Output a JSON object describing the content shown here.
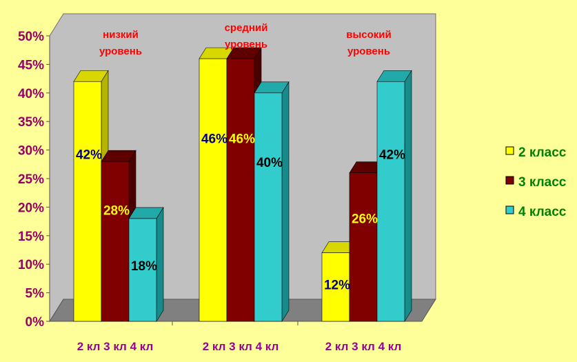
{
  "chart_data": {
    "type": "bar",
    "title": "",
    "xlabel": "",
    "ylabel": "",
    "ylim": [
      0,
      50
    ],
    "y_ticks": [
      "0%",
      "5%",
      "10%",
      "15%",
      "20%",
      "25%",
      "30%",
      "35%",
      "40%",
      "45%",
      "50%"
    ],
    "grid": false,
    "legend_position": "right",
    "groups": [
      {
        "title_lines": [
          "низкий",
          "уровень"
        ],
        "tick_label": "2 кл 3 кл 4 кл",
        "values": [
          42,
          28,
          18
        ],
        "labels": [
          "42%",
          "28%",
          "18%"
        ]
      },
      {
        "title_lines": [
          "средний",
          "уровень"
        ],
        "tick_label": "2 кл 3 кл 4 кл",
        "values": [
          46,
          46,
          40
        ],
        "labels": [
          "46%",
          "46%",
          "40%"
        ]
      },
      {
        "title_lines": [
          "высокий",
          "уровень"
        ],
        "tick_label": "2 кл 3 кл 4 кл",
        "values": [
          12,
          26,
          42
        ],
        "labels": [
          "12%",
          "26%",
          "42%"
        ]
      }
    ],
    "series": [
      {
        "name": "2 класс",
        "color": "#FFFF00",
        "side_color": "#B5B500",
        "top_color": "#D8D800",
        "label_color": "#000080"
      },
      {
        "name": "3 класс",
        "color": "#800000",
        "side_color": "#4A0000",
        "top_color": "#5E0000",
        "label_color": "#FFFF00"
      },
      {
        "name": "4 класс",
        "color": "#33CCCC",
        "side_color": "#178A8A",
        "top_color": "#22A9A9",
        "label_color": "#000000"
      }
    ],
    "colors": {
      "background": "#FFFF99",
      "wall": "#C0C0C0",
      "floor": "#808080",
      "axis_text": "#990066",
      "group_title": "#FF0000",
      "category_text": "#990099",
      "legend_text": "#008000"
    }
  }
}
